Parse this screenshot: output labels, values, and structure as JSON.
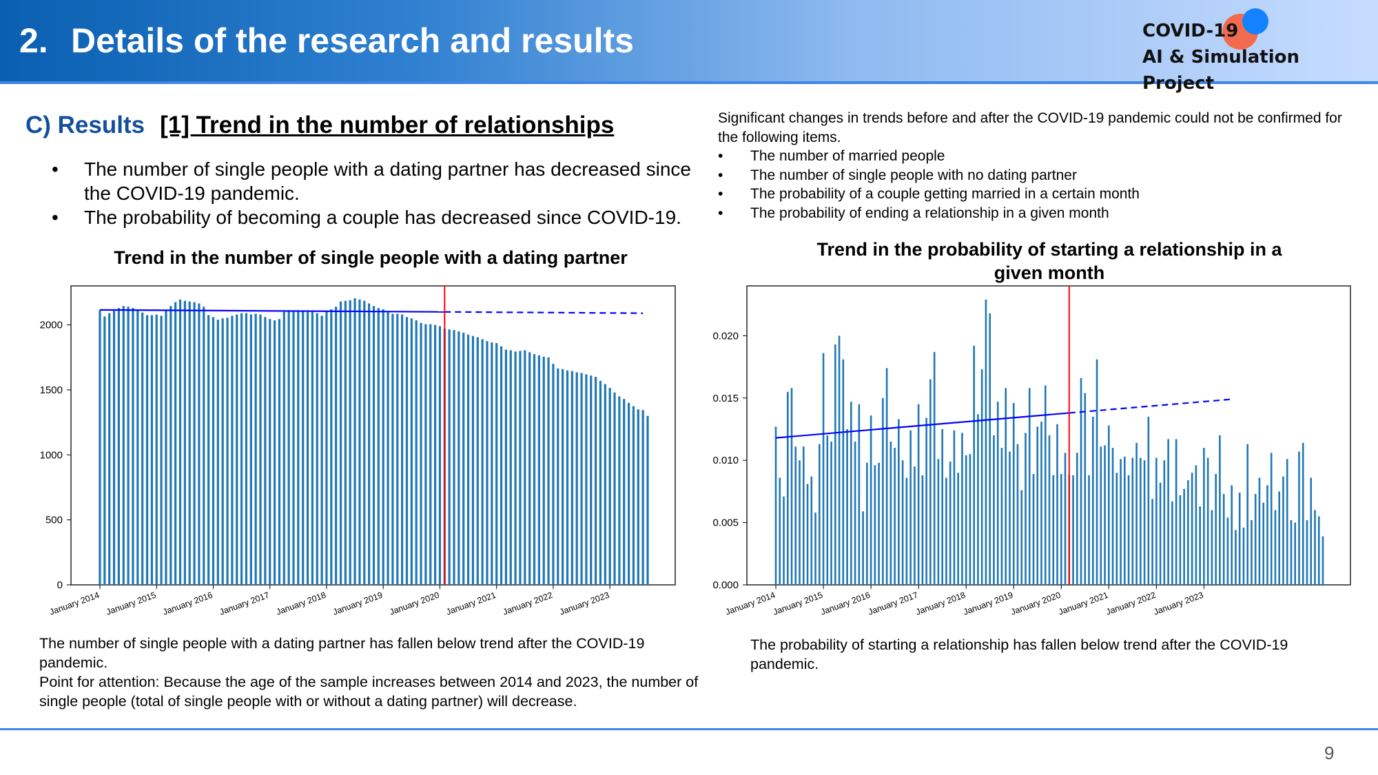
{
  "slide": {
    "number_label": "2.",
    "title": "Details of the research and results",
    "logo_line1": "COVID-19",
    "logo_line2": "AI & Simulation Project",
    "page_number": "9"
  },
  "section": {
    "label": "C)  Results",
    "subtitle": "[1] Trend in the number of relationships"
  },
  "bullets": [
    "The number of single people with a dating partner has decreased since the COVID-19 pandemic.",
    "The probability of becoming a couple has decreased since COVID-19."
  ],
  "side_note": {
    "intro": "Significant changes in trends before and after the COVID-19 pandemic could not be confirmed for the following items.",
    "items": [
      "The number of married people",
      "The number of single people with no dating partner",
      "The probability of a couple getting married in a certain month",
      "The probability of ending a relationship in a given month"
    ]
  },
  "captions": {
    "left": "The number of single people with a dating partner has fallen below trend after the COVID-19 pandemic.",
    "left_note": "Point for attention: Because the age of the sample increases between 2014 and 2023, the number of single people (total of single people with or without a dating partner) will decrease.",
    "right": "The probability of starting a relationship has fallen below trend after the COVID-19 pandemic."
  },
  "colors": {
    "bar": "#1f77b4",
    "trend": "#0000ff",
    "covid_line": "#ff0000",
    "title_blue": "#134f9c"
  },
  "chart_data": [
    {
      "type": "bar",
      "title": "Trend in the number of single people with a dating partner",
      "xlabel": "",
      "ylabel": "",
      "ylim": [
        0,
        2300
      ],
      "yticks": [
        0,
        500,
        1000,
        1500,
        2000
      ],
      "x_tick_labels": [
        "January 2014",
        "January 2015",
        "January 2016",
        "January 2017",
        "January 2018",
        "January 2019",
        "January 2020",
        "January 2021",
        "January 2022",
        "January 2023"
      ],
      "start_label": "January 2014",
      "covid_marker_index": 73,
      "trend_solid": {
        "start_index": 0,
        "end_index": 73,
        "start_value": 2115,
        "end_value": 2100
      },
      "trend_dashed": {
        "start_index": 73,
        "end_index": 115,
        "start_value": 2100,
        "end_value": 2090
      },
      "values": [
        2115,
        2065,
        2090,
        2110,
        2130,
        2145,
        2140,
        2130,
        2115,
        2095,
        2075,
        2075,
        2080,
        2070,
        2110,
        2145,
        2175,
        2195,
        2185,
        2180,
        2175,
        2165,
        2140,
        2075,
        2060,
        2040,
        2050,
        2055,
        2070,
        2080,
        2090,
        2090,
        2080,
        2085,
        2080,
        2060,
        2045,
        2035,
        2045,
        2100,
        2110,
        2110,
        2105,
        2105,
        2100,
        2100,
        2090,
        2070,
        2100,
        2120,
        2140,
        2180,
        2185,
        2190,
        2205,
        2195,
        2185,
        2165,
        2145,
        2130,
        2120,
        2100,
        2085,
        2085,
        2080,
        2060,
        2050,
        2035,
        2015,
        2005,
        2005,
        2000,
        1990,
        1970,
        1965,
        1960,
        1950,
        1940,
        1925,
        1915,
        1905,
        1890,
        1875,
        1865,
        1860,
        1835,
        1810,
        1805,
        1795,
        1800,
        1805,
        1790,
        1775,
        1765,
        1755,
        1750,
        1700,
        1665,
        1660,
        1650,
        1645,
        1635,
        1630,
        1620,
        1610,
        1600,
        1570,
        1545,
        1515,
        1480,
        1450,
        1430,
        1400,
        1375,
        1350,
        1345,
        1300
      ]
    },
    {
      "type": "bar",
      "title": "Trend in the probability of starting a relationship in a given month",
      "xlabel": "",
      "ylabel": "",
      "ylim": [
        0,
        0.024
      ],
      "yticks": [
        "0.000",
        "0.005",
        "0.010",
        "0.015",
        "0.020"
      ],
      "x_tick_labels": [
        "January 2014",
        "January 2015",
        "January 2016",
        "January 2017",
        "January 2018",
        "January 2019",
        "January 2020",
        "January 2021",
        "January 2022",
        "January 2023"
      ],
      "start_label": "January 2014",
      "covid_marker_index": 74,
      "trend_solid": {
        "start_index": 0,
        "end_index": 74,
        "start_value": 0.0118,
        "end_value": 0.0138
      },
      "trend_dashed": {
        "start_index": 74,
        "end_index": 115,
        "start_value": 0.0138,
        "end_value": 0.0149
      },
      "values": [
        0.0127,
        0.0086,
        0.0071,
        0.0155,
        0.0158,
        0.0111,
        0.01,
        0.0111,
        0.0081,
        0.0087,
        0.0058,
        0.0113,
        0.0186,
        0.012,
        0.0115,
        0.0193,
        0.02,
        0.0181,
        0.0125,
        0.0147,
        0.0115,
        0.0145,
        0.0059,
        0.0098,
        0.0136,
        0.0096,
        0.0098,
        0.015,
        0.0174,
        0.0115,
        0.011,
        0.0133,
        0.01,
        0.0086,
        0.0124,
        0.0095,
        0.0145,
        0.0088,
        0.0134,
        0.0165,
        0.0187,
        0.0101,
        0.0125,
        0.0086,
        0.0099,
        0.0124,
        0.009,
        0.0122,
        0.0104,
        0.0105,
        0.0192,
        0.0137,
        0.0173,
        0.0229,
        0.0218,
        0.012,
        0.0147,
        0.011,
        0.0158,
        0.0107,
        0.0146,
        0.0113,
        0.0076,
        0.0122,
        0.0158,
        0.0089,
        0.0127,
        0.0131,
        0.016,
        0.012,
        0.0088,
        0.0129,
        0.0089,
        0.0106,
        0.0088,
        0.0088,
        0.0106,
        0.0166,
        0.0154,
        0.0088,
        0.0135,
        0.0181,
        0.0111,
        0.0112,
        0.0128,
        0.011,
        0.009,
        0.0101,
        0.0103,
        0.0088,
        0.0102,
        0.0114,
        0.0102,
        0.01,
        0.0135,
        0.0069,
        0.0102,
        0.0082,
        0.01,
        0.0117,
        0.0067,
        0.0117,
        0.0072,
        0.0077,
        0.0084,
        0.009,
        0.0096,
        0.0063,
        0.011,
        0.0102,
        0.006,
        0.0089,
        0.012,
        0.0073,
        0.0054,
        0.008,
        0.0044,
        0.0074,
        0.0046,
        0.0113,
        0.0052,
        0.0073,
        0.0086,
        0.0066,
        0.008,
        0.0106,
        0.006,
        0.0075,
        0.0087,
        0.0101,
        0.0052,
        0.005,
        0.0107,
        0.0114,
        0.0052,
        0.0086,
        0.006,
        0.0055,
        0.0039
      ]
    }
  ]
}
